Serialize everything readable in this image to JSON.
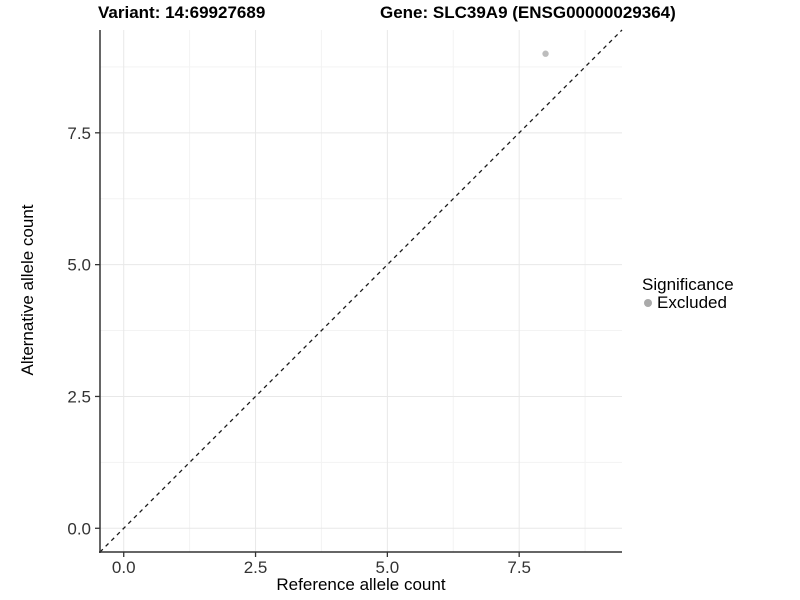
{
  "titles": {
    "variant": "Variant: 14:69927689",
    "gene": "Gene: SLC39A9 (ENSG00000029364)"
  },
  "axes": {
    "x_label": "Reference allele count",
    "y_label": "Alternative allele count"
  },
  "legend": {
    "title": "Significance",
    "items": [
      {
        "label": "Excluded",
        "color": "#aaaaaa"
      }
    ]
  },
  "colors": {
    "point": "#bdbdbd",
    "grid_major": "#e8e8e8",
    "grid_minor": "#f3f3f3",
    "axis_line": "#333333",
    "tick_mark": "#333333",
    "tick_label": "#333333",
    "identity_line": "#1a1a1a",
    "background": "#ffffff"
  },
  "chart_data": {
    "type": "scatter",
    "title": "Variant: 14:69927689    Gene: SLC39A9 (ENSG00000029364)",
    "xlabel": "Reference allele count",
    "ylabel": "Alternative allele count",
    "xlim": [
      -0.45,
      9.45
    ],
    "ylim": [
      -0.45,
      9.45
    ],
    "x_ticks": [
      0.0,
      2.5,
      5.0,
      7.5
    ],
    "y_ticks": [
      0.0,
      2.5,
      5.0,
      7.5
    ],
    "x_minor_ticks": [
      1.25,
      3.75,
      6.25,
      8.75
    ],
    "y_minor_ticks": [
      1.25,
      3.75,
      6.25,
      8.75
    ],
    "grid": true,
    "legend_position": "right",
    "reference_line": {
      "kind": "identity",
      "equation": "y = x",
      "style": "dashed"
    },
    "series": [
      {
        "name": "Excluded",
        "points": [
          {
            "x": 8,
            "y": 9
          }
        ]
      }
    ]
  }
}
